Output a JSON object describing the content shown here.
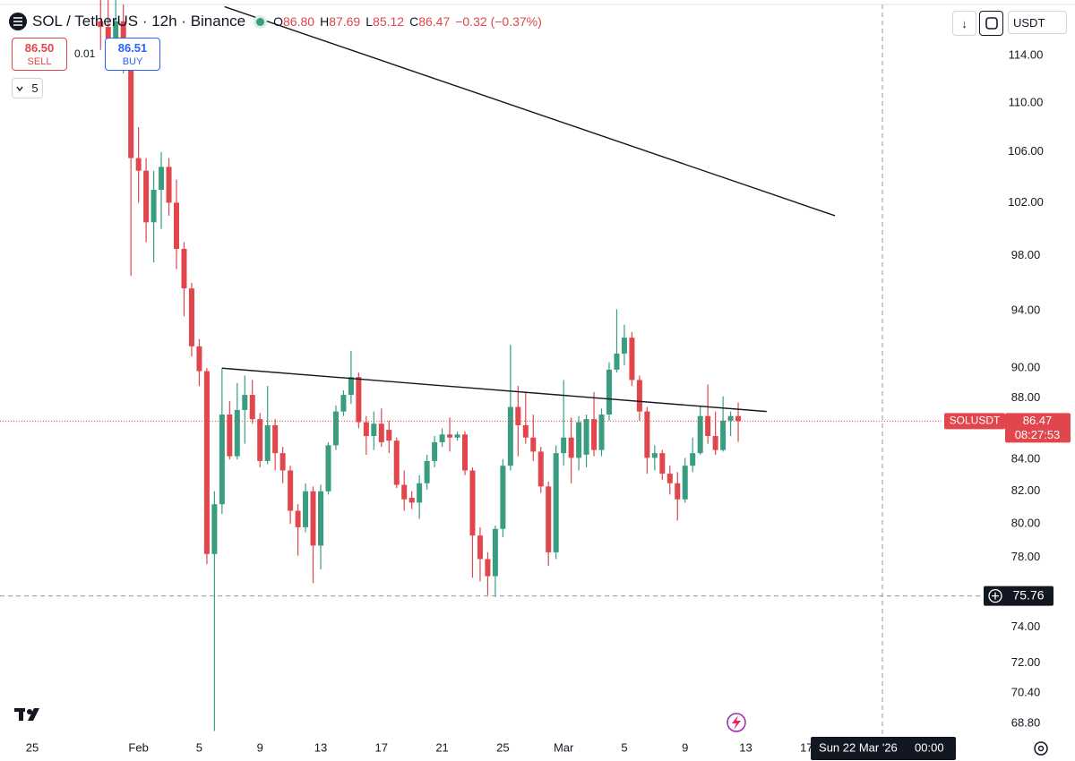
{
  "header": {
    "title": "SOL / TetherUS · 12h · Binance",
    "ohlc": [
      {
        "label": "O",
        "value": "86.80"
      },
      {
        "label": "H",
        "value": "87.69"
      },
      {
        "label": "L",
        "value": "85.12"
      },
      {
        "label": "C",
        "value": "86.47"
      }
    ],
    "change": "−0.32 (−0.37%)",
    "sell": {
      "price": "86.50",
      "label": "SELL"
    },
    "spread": "0.01",
    "buy": {
      "price": "86.51",
      "label": "BUY"
    },
    "indicators": "5",
    "currency": "USDT"
  },
  "chart_data": {
    "type": "candlestick",
    "log": true,
    "grid": false,
    "up_color": "#3a9d81",
    "down_color": "#e0464c",
    "x": [
      "2026-01-29T12:00",
      "2026-01-30T00:00",
      "2026-01-30T12:00",
      "2026-01-31T00:00",
      "2026-01-31T12:00",
      "2026-02-01T00:00",
      "2026-02-01T12:00",
      "2026-02-02T00:00",
      "2026-02-02T12:00",
      "2026-02-03T00:00",
      "2026-02-03T12:00",
      "2026-02-04T00:00",
      "2026-02-04T12:00",
      "2026-02-05T00:00",
      "2026-02-05T12:00",
      "2026-02-06T00:00",
      "2026-02-06T12:00",
      "2026-02-07T00:00",
      "2026-02-07T12:00",
      "2026-02-08T00:00",
      "2026-02-08T12:00",
      "2026-02-09T00:00",
      "2026-02-09T12:00",
      "2026-02-10T00:00",
      "2026-02-10T12:00",
      "2026-02-11T00:00",
      "2026-02-11T12:00",
      "2026-02-12T00:00",
      "2026-02-12T12:00",
      "2026-02-13T00:00",
      "2026-02-13T12:00",
      "2026-02-14T00:00",
      "2026-02-14T12:00",
      "2026-02-15T00:00",
      "2026-02-15T12:00",
      "2026-02-16T00:00",
      "2026-02-16T12:00",
      "2026-02-17T00:00",
      "2026-02-17T12:00",
      "2026-02-18T00:00",
      "2026-02-18T12:00",
      "2026-02-19T00:00",
      "2026-02-19T12:00",
      "2026-02-20T00:00",
      "2026-02-20T12:00",
      "2026-02-21T00:00",
      "2026-02-21T12:00",
      "2026-02-22T00:00",
      "2026-02-22T12:00",
      "2026-02-23T00:00",
      "2026-02-23T12:00",
      "2026-02-24T00:00",
      "2026-02-24T12:00",
      "2026-02-25T00:00",
      "2026-02-25T12:00",
      "2026-02-26T00:00",
      "2026-02-26T12:00",
      "2026-02-27T00:00",
      "2026-02-27T12:00",
      "2026-02-28T00:00",
      "2026-02-28T12:00",
      "2026-03-01T00:00",
      "2026-03-01T12:00",
      "2026-03-02T00:00",
      "2026-03-02T12:00",
      "2026-03-03T00:00",
      "2026-03-03T12:00",
      "2026-03-04T00:00",
      "2026-03-04T12:00",
      "2026-03-05T00:00",
      "2026-03-05T12:00",
      "2026-03-06T00:00",
      "2026-03-06T12:00",
      "2026-03-07T00:00",
      "2026-03-07T12:00",
      "2026-03-08T00:00",
      "2026-03-08T12:00",
      "2026-03-09T00:00",
      "2026-03-09T12:00",
      "2026-03-10T00:00",
      "2026-03-10T12:00",
      "2026-03-11T00:00",
      "2026-03-11T12:00",
      "2026-03-12T00:00",
      "2026-03-12T12:00"
    ],
    "open": [
      117,
      116.5,
      115.5,
      117,
      113.5,
      105.5,
      104.5,
      100.5,
      103,
      104.8,
      102,
      98.5,
      95.6,
      91.5,
      89.8,
      78.2,
      81.2,
      86.9,
      84.2,
      87.2,
      88.2,
      86.6,
      83.9,
      86.2,
      84.4,
      83.3,
      80.8,
      79.8,
      82,
      78.7,
      82,
      84.9,
      87.1,
      88.2,
      89.4,
      86.4,
      85.5,
      86.3,
      85.9,
      85.2,
      82.4,
      81.6,
      81.3,
      82.5,
      83.9,
      85.1,
      85.6,
      85.4,
      85.6,
      83.3,
      79.3,
      77.9,
      76.9,
      79.7,
      83.6,
      87.4,
      86.2,
      85.4,
      84.5,
      82.3,
      78.3,
      84.4,
      85.4,
      84.1,
      84.3,
      86.6,
      84.6,
      86.9,
      89.9,
      91,
      92.1,
      89.2,
      87.1,
      84.1,
      84.4,
      83.1,
      82.5,
      81.5,
      83.6,
      84.4,
      86.8,
      85.5,
      84.6,
      86.5,
      86.8
    ],
    "high": [
      119.5,
      119,
      119,
      118.5,
      114.5,
      108,
      105.5,
      104.5,
      106,
      105.5,
      103.8,
      99,
      96,
      92,
      90,
      82,
      90,
      87.8,
      89,
      89.5,
      89.2,
      87,
      88.8,
      86.6,
      84.8,
      83.6,
      81.2,
      82.5,
      82.3,
      82.4,
      85.1,
      87.5,
      88.5,
      91.2,
      89.7,
      86.8,
      87.1,
      87.3,
      86.5,
      85.4,
      83.3,
      82,
      83,
      84.3,
      85.5,
      86,
      86.7,
      85.8,
      85.8,
      83.5,
      79.8,
      78.3,
      79.9,
      84,
      91.6,
      88.8,
      88.4,
      86.9,
      84.8,
      82.6,
      84.9,
      89.2,
      86.7,
      86.8,
      86.9,
      88.4,
      87.3,
      90.4,
      94.1,
      93,
      92.5,
      89.5,
      87.4,
      84.9,
      84.6,
      83.6,
      83.2,
      84.1,
      85.4,
      87.5,
      88.9,
      87.1,
      88.1,
      87.1,
      87.69
    ],
    "low": [
      114.5,
      113,
      115,
      112.5,
      96.5,
      102,
      99,
      97.5,
      100,
      101,
      97,
      93.6,
      90.8,
      88.8,
      77.6,
      68.4,
      80.6,
      84,
      84,
      85,
      86.3,
      83.5,
      83.7,
      83.3,
      82.5,
      80,
      78.1,
      79.5,
      76.5,
      77.3,
      81.8,
      84.6,
      86.8,
      87.6,
      86,
      84.3,
      84.6,
      84.8,
      84.4,
      82.2,
      80.8,
      80.9,
      80.3,
      82.1,
      83.5,
      84.8,
      84.5,
      85.2,
      83,
      76.8,
      76.6,
      75.8,
      75.7,
      79.2,
      83.3,
      84.2,
      85,
      83.9,
      81.9,
      77.5,
      77.9,
      83.6,
      82.5,
      83.3,
      83.5,
      84.2,
      84.2,
      86.5,
      89.7,
      90.2,
      88.8,
      86.5,
      83.1,
      83.3,
      82.7,
      81.8,
      80.2,
      81.3,
      83.2,
      84.3,
      85,
      84.3,
      84.5,
      85.5,
      85.12
    ],
    "close": [
      116.5,
      115.5,
      117,
      113.5,
      105.5,
      104.5,
      100.5,
      103,
      104.8,
      102,
      98.5,
      95.6,
      91.5,
      89.8,
      78.2,
      81.2,
      86.9,
      84.2,
      87.2,
      88.2,
      86.6,
      83.9,
      86.2,
      84.4,
      83.3,
      80.8,
      79.8,
      82,
      78.7,
      82,
      84.9,
      87.1,
      88.2,
      89.4,
      86.4,
      85.5,
      86.3,
      85.1,
      85.2,
      82.4,
      81.5,
      81.3,
      82.5,
      83.9,
      85.1,
      85.6,
      85.4,
      85.6,
      83.3,
      79.3,
      77.9,
      76.9,
      79.7,
      83.6,
      87.4,
      86.2,
      85.4,
      84.5,
      82.3,
      78.3,
      84.4,
      85.4,
      84.1,
      86.4,
      86.6,
      84.6,
      86.9,
      89.9,
      91,
      92.1,
      89.2,
      87.1,
      84.1,
      84.4,
      83.1,
      82.5,
      81.5,
      83.6,
      84.4,
      86.8,
      85.5,
      84.6,
      86.5,
      86.8,
      86.47
    ],
    "xlim": [
      "2026-01-22T21:00",
      "2026-03-25T20:00"
    ],
    "xticks": [
      {
        "value": "2026-01-25T00:00",
        "label": "25"
      },
      {
        "value": "2026-02-01T00:00",
        "label": "Feb"
      },
      {
        "value": "2026-02-05T00:00",
        "label": "5"
      },
      {
        "value": "2026-02-09T00:00",
        "label": "9"
      },
      {
        "value": "2026-02-13T00:00",
        "label": "13"
      },
      {
        "value": "2026-02-17T00:00",
        "label": "17"
      },
      {
        "value": "2026-02-21T00:00",
        "label": "21"
      },
      {
        "value": "2026-02-25T00:00",
        "label": "25"
      },
      {
        "value": "2026-03-01T00:00",
        "label": "Mar"
      },
      {
        "value": "2026-03-05T00:00",
        "label": "5"
      },
      {
        "value": "2026-03-09T00:00",
        "label": "9"
      },
      {
        "value": "2026-03-13T00:00",
        "label": "13"
      },
      {
        "value": "2026-03-17T00:00",
        "label": "17"
      }
    ],
    "ylim": [
      68.24,
      118.9
    ],
    "yticks": [
      {
        "value": 114,
        "label": "114.00"
      },
      {
        "value": 110,
        "label": "110.00"
      },
      {
        "value": 106,
        "label": "106.00"
      },
      {
        "value": 102,
        "label": "102.00"
      },
      {
        "value": 98,
        "label": "98.00"
      },
      {
        "value": 94,
        "label": "94.00"
      },
      {
        "value": 90,
        "label": "90.00"
      },
      {
        "value": 88,
        "label": "88.00"
      },
      {
        "value": 84,
        "label": "84.00"
      },
      {
        "value": 82,
        "label": "82.00"
      },
      {
        "value": 80,
        "label": "80.00"
      },
      {
        "value": 78,
        "label": "78.00"
      },
      {
        "value": 74,
        "label": "74.00"
      },
      {
        "value": 72,
        "label": "72.00"
      },
      {
        "value": 70.4,
        "label": "70.40"
      },
      {
        "value": 68.8,
        "label": "68.80"
      }
    ],
    "trendlines": [
      {
        "x1": "2026-02-06T16:00",
        "y1": 118.3,
        "x2": "2026-03-18T21:00",
        "y2": 101.0,
        "color": "#131722"
      },
      {
        "x1": "2026-02-06T12:00",
        "y1": 90.0,
        "x2": "2026-03-14T09:00",
        "y2": 87.1,
        "color": "#131722"
      }
    ],
    "symbol": "SOLUSDT",
    "current_price": 86.47,
    "countdown": "08:27:53",
    "current_color": "#e0464c",
    "crosshair": {
      "x": "2026-03-22T00:00",
      "y": 75.76,
      "date_label": "Sun 22 Mar '26",
      "time_label": "00:00"
    }
  }
}
